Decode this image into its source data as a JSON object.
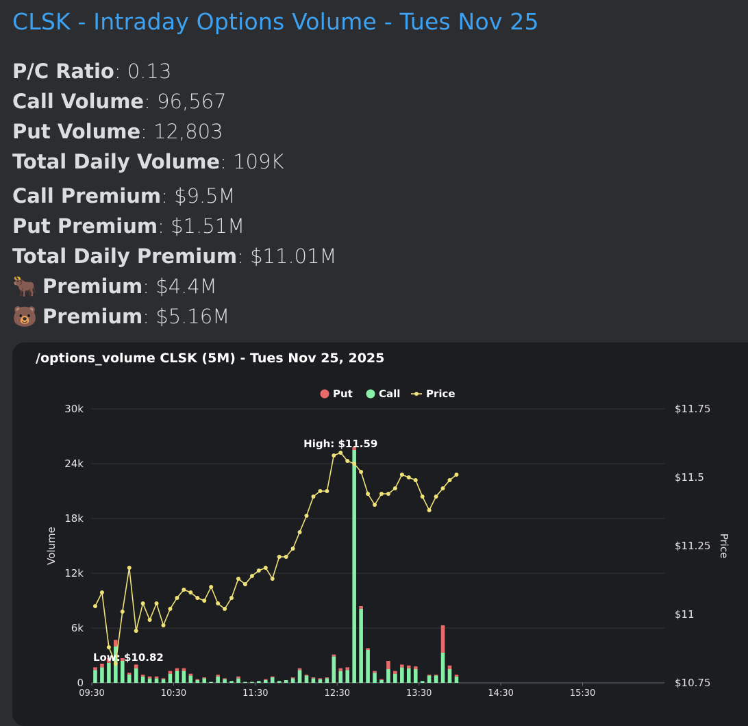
{
  "header": {
    "title": "CLSK - Intraday Options Volume - Tues Nov 25"
  },
  "stats": [
    {
      "emoji": "",
      "label": "P/C Ratio",
      "value": ": 0.13"
    },
    {
      "emoji": "",
      "label": "Call Volume",
      "value": ": 96,567"
    },
    {
      "emoji": "",
      "label": "Put Volume",
      "value": ": 12,803"
    },
    {
      "emoji": "",
      "label": "Total Daily Volume",
      "value": ": 109K"
    },
    {
      "emoji": "",
      "label": "Call Premium",
      "value": ": $9.5M"
    },
    {
      "emoji": "",
      "label": "Put Premium",
      "value": ": $1.51M"
    },
    {
      "emoji": "",
      "label": "Total Daily Premium",
      "value": ": $11.01M"
    },
    {
      "emoji": "🐂",
      "label": "Premium",
      "value": ": $4.4M"
    },
    {
      "emoji": "🐻",
      "label": "Premium",
      "value": ": $5.16M"
    }
  ],
  "chart_data": {
    "type": "bar",
    "title": "/options_volume CLSK (5M) - Tues Nov 25, 2025",
    "ylabel": "Volume",
    "y2label": "Price",
    "ylim": [
      0,
      30000
    ],
    "y2lim": [
      10.75,
      11.75
    ],
    "yticks": [
      "0",
      "6k",
      "12k",
      "18k",
      "24k",
      "30k"
    ],
    "y2ticks": [
      "$10.75",
      "$11",
      "$11.25",
      "$11.5",
      "$11.75"
    ],
    "xticks": [
      "09:30",
      "10:30",
      "11:30",
      "12:30",
      "13:30",
      "14:30",
      "15:30"
    ],
    "legend": {
      "position": "top-center",
      "items": [
        "Put",
        "Call",
        "Price"
      ]
    },
    "colors": {
      "put": "#e86a6a",
      "call": "#86f0a9",
      "price": "#f0e27a"
    },
    "annotations": {
      "high": "High: $11.59",
      "low": "Low: $10.82"
    },
    "categories": [
      "09:30",
      "09:35",
      "09:40",
      "09:45",
      "09:50",
      "09:55",
      "10:00",
      "10:05",
      "10:10",
      "10:15",
      "10:20",
      "10:25",
      "10:30",
      "10:35",
      "10:40",
      "10:45",
      "10:50",
      "10:55",
      "11:00",
      "11:05",
      "11:10",
      "11:15",
      "11:20",
      "11:25",
      "11:30",
      "11:35",
      "11:40",
      "11:45",
      "11:50",
      "11:55",
      "12:00",
      "12:05",
      "12:10",
      "12:15",
      "12:20",
      "12:25",
      "12:30",
      "12:35",
      "12:40",
      "12:45",
      "12:50",
      "12:55",
      "13:00",
      "13:05",
      "13:10",
      "13:15",
      "13:20",
      "13:25",
      "13:30",
      "13:35",
      "13:40",
      "13:45",
      "13:50",
      "13:55",
      "14:00"
    ],
    "series": [
      {
        "name": "Call",
        "values": [
          1400,
          1700,
          2200,
          4000,
          2400,
          900,
          1600,
          700,
          500,
          500,
          400,
          1000,
          1300,
          1300,
          800,
          300,
          500,
          100,
          700,
          400,
          200,
          500,
          100,
          100,
          200,
          300,
          600,
          200,
          300,
          500,
          1400,
          800,
          500,
          400,
          500,
          2900,
          1300,
          1400,
          25500,
          8100,
          3600,
          1100,
          300,
          1500,
          1000,
          1700,
          1600,
          1500,
          200,
          800,
          800,
          3300,
          1500,
          700,
          0
        ]
      },
      {
        "name": "Put",
        "values": [
          300,
          400,
          500,
          700,
          300,
          200,
          400,
          200,
          200,
          200,
          100,
          300,
          300,
          300,
          200,
          100,
          100,
          0,
          200,
          100,
          0,
          200,
          0,
          0,
          0,
          100,
          100,
          0,
          0,
          100,
          200,
          100,
          100,
          100,
          100,
          200,
          300,
          300,
          300,
          300,
          200,
          200,
          100,
          900,
          300,
          300,
          300,
          300,
          0,
          100,
          100,
          3000,
          400,
          200,
          0
        ]
      },
      {
        "name": "Price",
        "values": [
          11.03,
          11.08,
          10.88,
          10.82,
          11.01,
          11.17,
          10.94,
          11.04,
          10.98,
          11.04,
          10.96,
          11.02,
          11.06,
          11.09,
          11.08,
          11.06,
          11.05,
          11.1,
          11.04,
          11.02,
          11.06,
          11.13,
          11.11,
          11.14,
          11.16,
          11.17,
          11.13,
          11.21,
          11.21,
          11.24,
          11.3,
          11.36,
          11.43,
          11.45,
          11.45,
          11.58,
          11.59,
          11.56,
          11.55,
          11.52,
          11.44,
          11.4,
          11.44,
          11.44,
          11.46,
          11.51,
          11.5,
          11.49,
          11.43,
          11.38,
          11.43,
          11.46,
          11.49,
          11.51,
          null
        ]
      }
    ]
  }
}
